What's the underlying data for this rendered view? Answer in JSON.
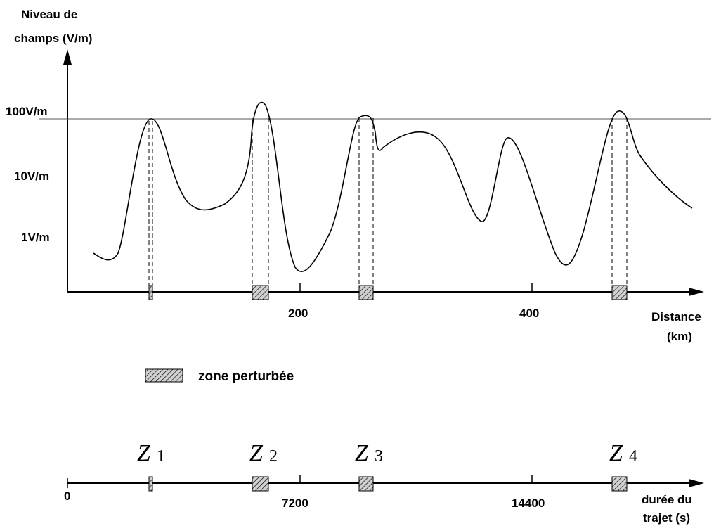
{
  "top_chart": {
    "ylabel_line1": "Niveau de",
    "ylabel_line2": "champs (V/m)",
    "y_levels": [
      "100V/m",
      "10V/m",
      "1V/m"
    ],
    "x_ticks": [
      "200",
      "400"
    ],
    "xlabel_line1": "Distance",
    "xlabel_line2": "(km)"
  },
  "legend": {
    "label": "zone perturbée"
  },
  "bottom_axis": {
    "origin": "0",
    "ticks": [
      "7200",
      "14400"
    ],
    "label_line1": "durée du",
    "label_line2": "trajet (s)"
  },
  "zones": [
    {
      "letter": "Z",
      "index": "1"
    },
    {
      "letter": "Z",
      "index": "2"
    },
    {
      "letter": "Z",
      "index": "3"
    },
    {
      "letter": "Z",
      "index": "4"
    }
  ],
  "colors": {
    "line": "#000000",
    "threshold": "#555555",
    "hatch_bg": "#d0d0d0"
  }
}
